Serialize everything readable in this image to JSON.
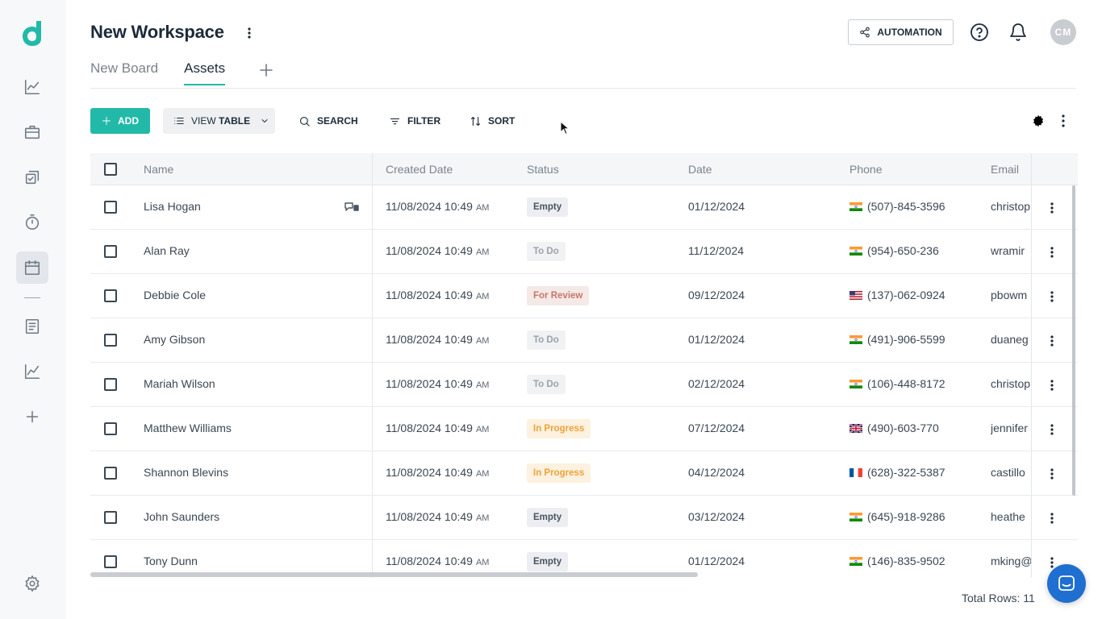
{
  "workspace": {
    "title": "New Workspace"
  },
  "tabs": [
    {
      "label": "New Board"
    },
    {
      "label": "Assets",
      "active": true
    }
  ],
  "header": {
    "automation_label": "AUTOMATION",
    "avatar_initials": "CM"
  },
  "toolbar": {
    "add_label": "ADD",
    "view_prefix": "VIEW",
    "view_value": "TABLE",
    "search_label": "SEARCH",
    "filter_label": "FILTER",
    "sort_label": "SORT"
  },
  "table": {
    "columns": [
      "Name",
      "Created Date",
      "Status",
      "Date",
      "Phone",
      "Email"
    ],
    "rows": [
      {
        "name": "Lisa Hogan",
        "created": "11/08/2024 10:49",
        "ampm": "AM",
        "status": "Empty",
        "date": "01/12/2024",
        "phone": "(507)-845-3596",
        "flag": "in",
        "email": "christop"
      },
      {
        "name": "Alan Ray",
        "created": "11/08/2024 10:49",
        "ampm": "AM",
        "status": "To Do",
        "date": "11/12/2024",
        "phone": "(954)-650-236",
        "flag": "in",
        "email": "wramir"
      },
      {
        "name": "Debbie Cole",
        "created": "11/08/2024 10:49",
        "ampm": "AM",
        "status": "For Review",
        "date": "09/12/2024",
        "phone": "(137)-062-0924",
        "flag": "us",
        "email": "pbowm"
      },
      {
        "name": "Amy Gibson",
        "created": "11/08/2024 10:49",
        "ampm": "AM",
        "status": "To Do",
        "date": "01/12/2024",
        "phone": "(491)-906-5599",
        "flag": "in",
        "email": "duaneg"
      },
      {
        "name": "Mariah Wilson",
        "created": "11/08/2024 10:49",
        "ampm": "AM",
        "status": "To Do",
        "date": "02/12/2024",
        "phone": "(106)-448-8172",
        "flag": "in",
        "email": "christop"
      },
      {
        "name": "Matthew Williams",
        "created": "11/08/2024 10:49",
        "ampm": "AM",
        "status": "In Progress",
        "date": "07/12/2024",
        "phone": "(490)-603-770",
        "flag": "gb",
        "email": "jennifer"
      },
      {
        "name": "Shannon Blevins",
        "created": "11/08/2024 10:49",
        "ampm": "AM",
        "status": "In Progress",
        "date": "04/12/2024",
        "phone": "(628)-322-5387",
        "flag": "fr",
        "email": "castillo"
      },
      {
        "name": "John Saunders",
        "created": "11/08/2024 10:49",
        "ampm": "AM",
        "status": "Empty",
        "date": "03/12/2024",
        "phone": "(645)-918-9286",
        "flag": "in",
        "email": "heathe"
      },
      {
        "name": "Tony Dunn",
        "created": "11/08/2024 10:49",
        "ampm": "AM",
        "status": "Empty",
        "date": "01/12/2024",
        "phone": "(146)-835-9502",
        "flag": "in",
        "email": "mking@"
      }
    ],
    "total_rows_label": "Total Rows: 11"
  },
  "status_colors": {
    "Empty": {
      "bg": "#eceef1",
      "fg": "#4a5560"
    },
    "To Do": {
      "bg": "#f1f2f4",
      "fg": "#9aa2ab"
    },
    "For Review": {
      "bg": "#f5e9e7",
      "fg": "#c2796c"
    },
    "In Progress": {
      "bg": "#fdf1df",
      "fg": "#eba33a"
    }
  },
  "accent_color": "#23b9a8",
  "icons": {
    "sidebar": [
      "analytics-icon",
      "briefcase-icon",
      "tasks-icon",
      "timer-icon",
      "calendar-icon",
      "document-icon",
      "report-icon",
      "add-icon",
      "settings-icon"
    ]
  }
}
